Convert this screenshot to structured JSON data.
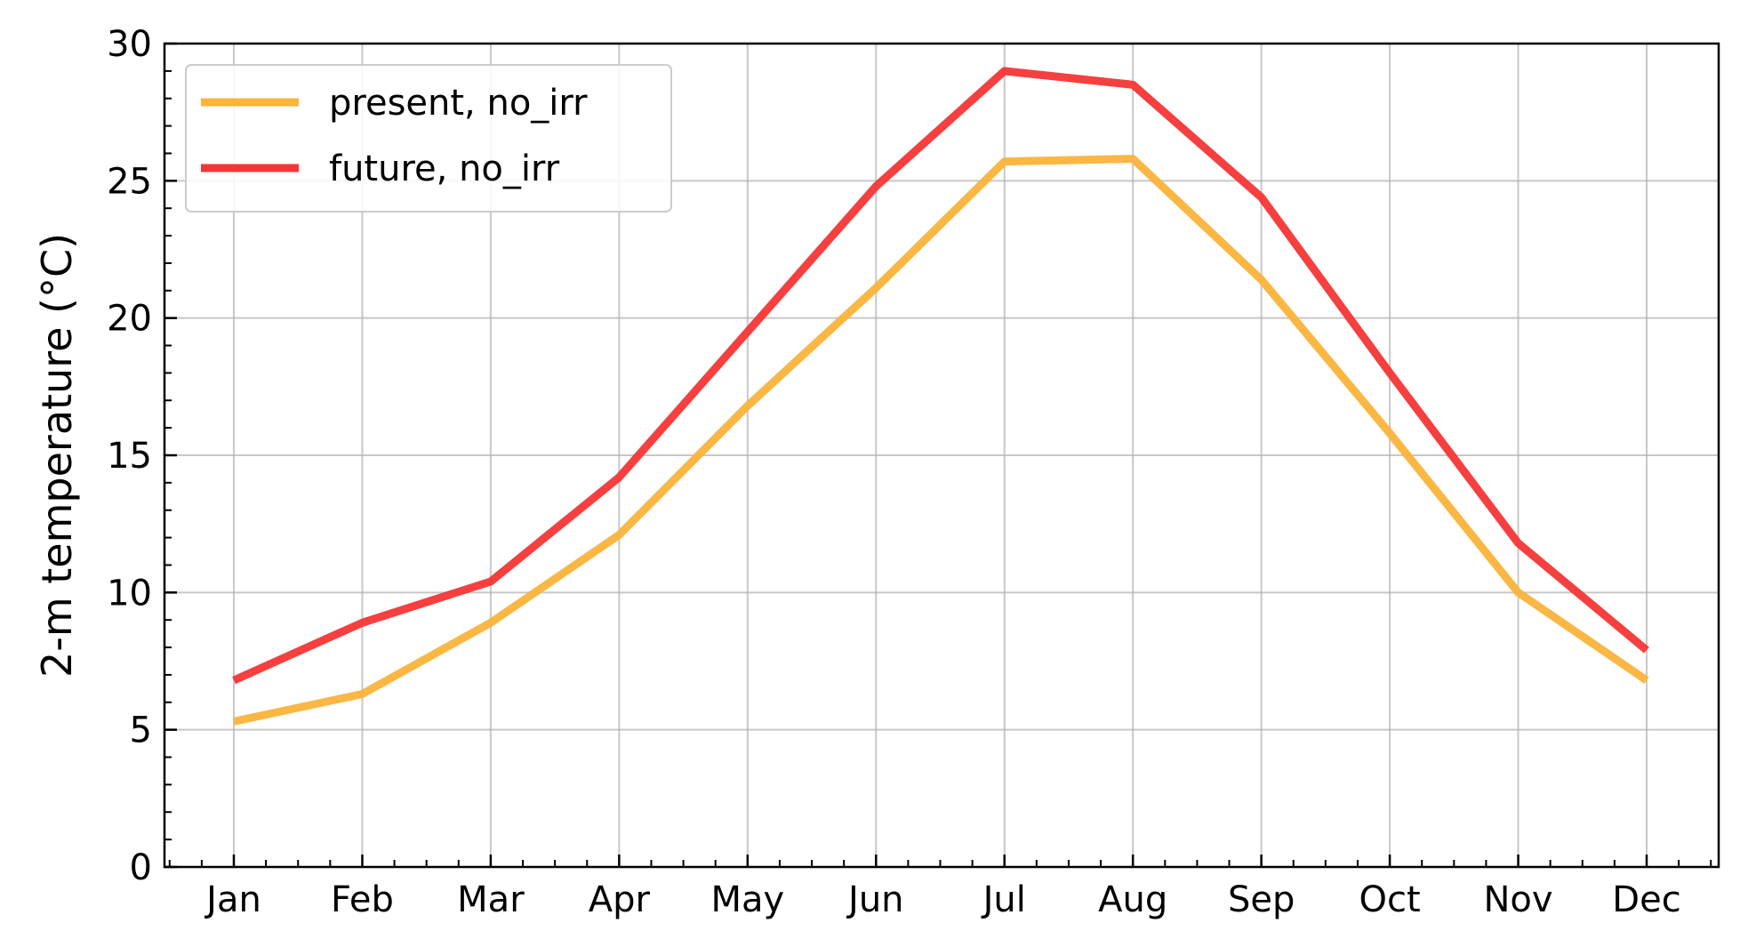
{
  "chart_data": {
    "type": "line",
    "title": "",
    "xlabel": "",
    "ylabel": "2-m temperature (°C)",
    "categories": [
      "Jan",
      "Feb",
      "Mar",
      "Apr",
      "May",
      "Jun",
      "Jul",
      "Aug",
      "Sep",
      "Oct",
      "Nov",
      "Dec"
    ],
    "ylim": [
      0,
      30
    ],
    "yticks": [
      0,
      5,
      10,
      15,
      20,
      25,
      30
    ],
    "grid": true,
    "legend_position": "top-left",
    "series": [
      {
        "name": "present, no_irr",
        "color": "#FBB33A",
        "values": [
          5.3,
          6.3,
          8.9,
          12.1,
          16.8,
          21.1,
          25.7,
          25.8,
          21.4,
          15.8,
          10.0,
          6.8
        ]
      },
      {
        "name": "future, no_irr",
        "color": "#F53535",
        "values": [
          6.8,
          8.9,
          10.4,
          14.2,
          19.5,
          24.8,
          29.0,
          28.5,
          24.4,
          18.0,
          11.8,
          7.9
        ]
      }
    ]
  }
}
